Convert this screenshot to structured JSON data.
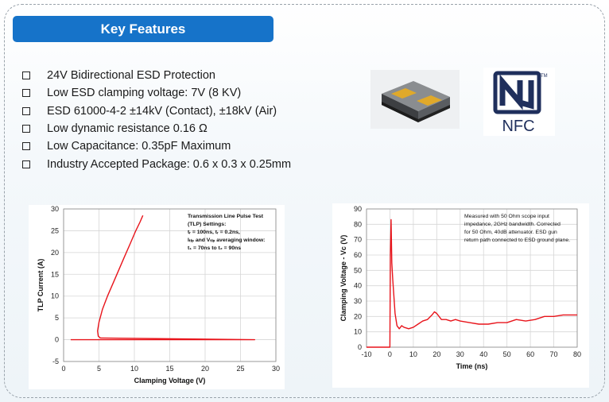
{
  "title": "Key Features",
  "features": [
    "24V Bidirectional ESD Protection",
    "Low ESD clamping voltage: 7V (8 KV)",
    "ESD 61000-4-2 ±14kV (Contact), ±18kV (Air)",
    "Low dynamic resistance 0.16 Ω",
    "Low Capacitance: 0.35pF Maximum",
    "Industry Accepted Package: 0.6 x 0.3 x 0.25mm"
  ],
  "nfc_logo": {
    "tm": "TM",
    "text": "NFC",
    "color": "#1f2f5c"
  },
  "colors": {
    "accent": "#1673c9",
    "trace": "#e8141b"
  },
  "chart_data": [
    {
      "type": "line",
      "xlabel": "Clamping Voltage (V)",
      "ylabel": "TLP Current (A)",
      "xlim": [
        0,
        30
      ],
      "ylim": [
        -5,
        30
      ],
      "xticks": [
        0,
        5,
        10,
        15,
        20,
        25,
        30
      ],
      "yticks": [
        -5,
        0,
        5,
        10,
        15,
        20,
        25,
        30
      ],
      "grid": true,
      "annotation": [
        "Transmission Line Pulse Test",
        "(TLP) Settings:",
        "tᵣ = 100ns, tᵣ = 0.2ns,",
        "Iₜₗₚ and Vₜₗₚ averaging window:",
        "t₁ = 70ns to t₂ = 90ns"
      ],
      "series": [
        {
          "x": [
            1,
            27,
            27,
            5.2,
            4.9,
            4.8,
            5.0,
            5.5,
            6.2,
            7.0,
            7.8,
            8.6,
            9.4,
            10.2,
            10.8,
            11.2
          ],
          "y": [
            0,
            0,
            0,
            0.4,
            0.8,
            2,
            4,
            7,
            10,
            13,
            16,
            19,
            22,
            25,
            27,
            28.5
          ]
        }
      ]
    },
    {
      "type": "line",
      "xlabel": "Time (ns)",
      "ylabel": "Clamping Voltage - Vᴄ (V)",
      "xlim": [
        -10,
        80
      ],
      "ylim": [
        0,
        90
      ],
      "xticks": [
        -10,
        0,
        10,
        20,
        30,
        40,
        50,
        60,
        70,
        80
      ],
      "yticks": [
        0,
        10,
        20,
        30,
        40,
        50,
        60,
        70,
        80,
        90
      ],
      "grid": true,
      "annotation": [
        "Measured with 50 Ohm scope input",
        "impedance, 2GHz bandwidth. Corrected",
        "for 50 Ohm, 40dB attenuator. ESD gun",
        "return path connected to ESD ground plane."
      ],
      "series": [
        {
          "x": [
            -10,
            0,
            0.2,
            0.5,
            0.8,
            1.2,
            1.6,
            2.2,
            3,
            4,
            5,
            6,
            8,
            10,
            12,
            14,
            16,
            18,
            19,
            20,
            22,
            24,
            26,
            28,
            30,
            34,
            38,
            42,
            46,
            50,
            54,
            58,
            62,
            66,
            70,
            74,
            78,
            80
          ],
          "y": [
            0,
            0,
            60,
            83,
            55,
            44,
            35,
            22,
            14,
            12,
            14,
            13,
            12,
            13,
            15,
            17,
            18,
            21,
            23,
            22,
            18,
            18,
            17,
            18,
            17,
            16,
            15,
            15,
            16,
            16,
            18,
            17,
            18,
            20,
            20,
            21,
            21,
            21
          ]
        }
      ]
    }
  ]
}
